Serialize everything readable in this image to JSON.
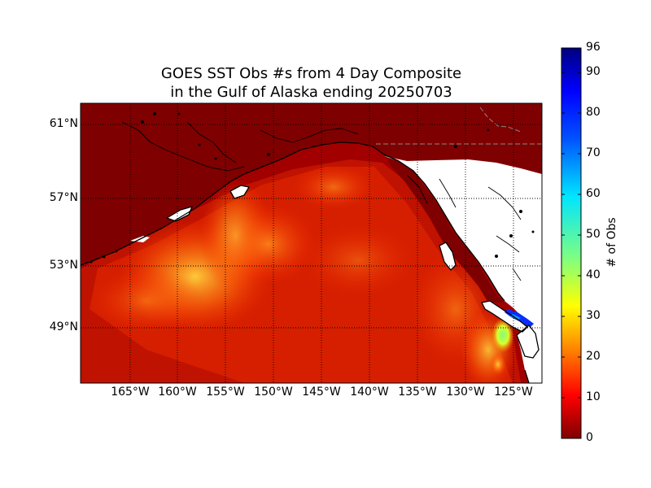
{
  "figure": {
    "title_line1": "GOES SST Obs #s from 4 Day Composite",
    "title_line2": "in the Gulf of Alaska ending 20250703"
  },
  "map": {
    "lat_labels": [
      "61°N",
      "57°N",
      "53°N",
      "49°N"
    ],
    "lon_labels": [
      "165°W",
      "160°W",
      "155°W",
      "150°W",
      "145°W",
      "140°W",
      "135°W",
      "130°W",
      "125°W"
    ],
    "gridlines": true,
    "land_color": "#7f0000",
    "no_data_color": "#ffffff",
    "coastline_color": "#000000"
  },
  "colorbar": {
    "label": "# of Obs",
    "ticks": [
      "0",
      "10",
      "20",
      "30",
      "40",
      "50",
      "60",
      "70",
      "80",
      "90",
      "96"
    ],
    "colormap": "jet",
    "range": [
      0,
      96
    ]
  }
}
